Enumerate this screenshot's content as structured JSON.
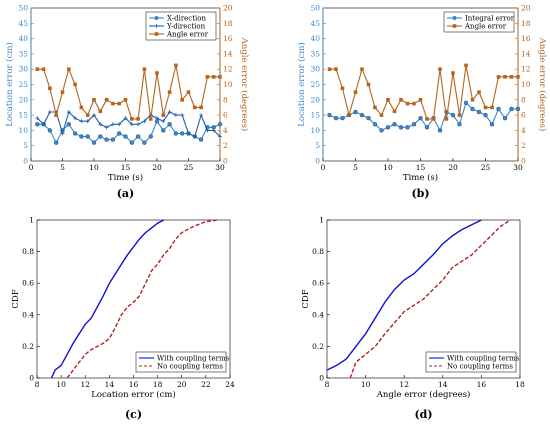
{
  "colors": {
    "blue_light": "#3f86c6",
    "blue_dark": "#1f5fa8",
    "orange": "#b5651d",
    "cdf_blue": "#1010d0",
    "cdf_red": "#b22222",
    "axis_right": "#b5651d"
  },
  "chart_data": [
    {
      "id": "a",
      "panel_label": "(a)",
      "type": "line",
      "xlabel": "Time (s)",
      "ylabel": "Location error (cm)",
      "ylabel_right": "Angle error (degrees)",
      "xlim": [
        0,
        30
      ],
      "ylim": [
        0,
        50
      ],
      "ylim_right": [
        0,
        20
      ],
      "xticks": [
        0,
        5,
        10,
        15,
        20,
        25,
        30
      ],
      "yticks": [
        0,
        5,
        10,
        15,
        20,
        25,
        30,
        35,
        40,
        45,
        50
      ],
      "yticks_right": [
        0,
        2,
        4,
        6,
        8,
        10,
        12,
        14,
        16,
        18,
        20
      ],
      "legend": "top-right",
      "series": [
        {
          "name": "X-direction",
          "axis": "left",
          "color": "#3f86c6",
          "marker": "circle",
          "x": [
            1,
            2,
            3,
            4,
            5,
            6,
            7,
            8,
            9,
            10,
            11,
            12,
            13,
            14,
            15,
            16,
            17,
            18,
            19,
            20,
            21,
            22,
            23,
            24,
            25,
            26,
            27,
            28,
            29,
            30
          ],
          "y": [
            12,
            12,
            10,
            6,
            10,
            12,
            9,
            8,
            8,
            6,
            8,
            7,
            7,
            9,
            8,
            6,
            8,
            6,
            8,
            13,
            10,
            12,
            9,
            9,
            9,
            8,
            7,
            11,
            11,
            12
          ]
        },
        {
          "name": "Y-direction",
          "axis": "left",
          "color": "#1f5fa8",
          "marker": "plus",
          "x": [
            1,
            2,
            3,
            4,
            5,
            6,
            7,
            8,
            9,
            10,
            11,
            12,
            13,
            14,
            15,
            16,
            17,
            18,
            19,
            20,
            21,
            22,
            23,
            24,
            25,
            26,
            27,
            28,
            29,
            30
          ],
          "y": [
            14,
            12,
            16,
            16,
            9,
            16,
            14,
            13,
            13,
            15,
            12,
            11,
            12,
            12,
            14,
            12,
            12,
            13,
            15,
            14,
            13,
            16,
            15,
            15,
            9,
            8,
            15,
            10,
            10,
            8
          ]
        },
        {
          "name": "Angle error",
          "axis": "right",
          "color": "#b5651d",
          "marker": "square",
          "x": [
            1,
            2,
            3,
            4,
            5,
            6,
            7,
            8,
            9,
            10,
            11,
            12,
            13,
            14,
            15,
            16,
            17,
            18,
            19,
            20,
            21,
            22,
            23,
            24,
            25,
            26,
            27,
            28,
            29,
            30
          ],
          "y": [
            12,
            12,
            9.5,
            6,
            9,
            12,
            10,
            7,
            6,
            8,
            6.5,
            8,
            7.5,
            7.5,
            8,
            5.5,
            5.5,
            12,
            5.5,
            11.5,
            6,
            9,
            12.5,
            8,
            9,
            7,
            7,
            11,
            11,
            11
          ]
        }
      ]
    },
    {
      "id": "b",
      "panel_label": "(b)",
      "type": "line",
      "xlabel": "Time (s)",
      "ylabel": "Location error (cm)",
      "ylabel_right": "Angle error (degrees)",
      "xlim": [
        0,
        30
      ],
      "ylim": [
        0,
        50
      ],
      "ylim_right": [
        0,
        20
      ],
      "xticks": [
        0,
        5,
        10,
        15,
        20,
        25,
        30
      ],
      "yticks": [
        0,
        5,
        10,
        15,
        20,
        25,
        30,
        35,
        40,
        45,
        50
      ],
      "yticks_right": [
        0,
        2,
        4,
        6,
        8,
        10,
        12,
        14,
        16,
        18,
        20
      ],
      "legend": "top-right",
      "series": [
        {
          "name": "Integral error",
          "axis": "left",
          "color": "#3f86c6",
          "marker": "circle",
          "x": [
            1,
            2,
            3,
            4,
            5,
            6,
            7,
            8,
            9,
            10,
            11,
            12,
            13,
            14,
            15,
            16,
            17,
            18,
            19,
            20,
            21,
            22,
            23,
            24,
            25,
            26,
            27,
            28,
            29,
            30
          ],
          "y": [
            15,
            14,
            14,
            15,
            16,
            15,
            14,
            12,
            10,
            11,
            12,
            11,
            11,
            12,
            14,
            11,
            14,
            10,
            16,
            15,
            12,
            19,
            17,
            16,
            15,
            12,
            17,
            14,
            17,
            17
          ]
        },
        {
          "name": "Angle error",
          "axis": "right",
          "color": "#b5651d",
          "marker": "square",
          "x": [
            1,
            2,
            3,
            4,
            5,
            6,
            7,
            8,
            9,
            10,
            11,
            12,
            13,
            14,
            15,
            16,
            17,
            18,
            19,
            20,
            21,
            22,
            23,
            24,
            25,
            26,
            27,
            28,
            29,
            30
          ],
          "y": [
            12,
            12,
            9.5,
            6,
            9,
            12,
            10,
            7,
            6,
            8,
            6.5,
            8,
            7.5,
            7.5,
            8,
            5.5,
            5.5,
            12,
            5.5,
            11.5,
            6,
            12.5,
            8,
            9,
            7,
            7,
            11,
            11,
            11,
            11
          ]
        }
      ]
    },
    {
      "id": "c",
      "panel_label": "(c)",
      "type": "line",
      "xlabel": "Location error (cm)",
      "ylabel": "CDF",
      "xlim": [
        8,
        24
      ],
      "ylim": [
        0,
        1
      ],
      "xticks": [
        8,
        10,
        12,
        14,
        16,
        18,
        20,
        22,
        24
      ],
      "yticks": [
        0,
        0.2,
        0.4,
        0.6,
        0.8,
        1
      ],
      "legend": "bottom-right",
      "series": [
        {
          "name": "With coupling terms",
          "color": "#1010d0",
          "style": "solid",
          "x": [
            9.2,
            9.5,
            10.0,
            10.5,
            11.0,
            11.5,
            12.0,
            12.5,
            13.0,
            13.5,
            14.0,
            14.5,
            15.0,
            15.5,
            16.0,
            16.5,
            17.0,
            17.5,
            18.0,
            18.5
          ],
          "y": [
            0.0,
            0.05,
            0.08,
            0.15,
            0.22,
            0.28,
            0.34,
            0.38,
            0.45,
            0.52,
            0.6,
            0.66,
            0.72,
            0.78,
            0.83,
            0.88,
            0.92,
            0.95,
            0.98,
            1.0
          ]
        },
        {
          "name": "No coupling terms",
          "color": "#b22222",
          "style": "dashed",
          "x": [
            10.5,
            11.0,
            11.5,
            12.0,
            12.5,
            13.0,
            13.5,
            14.0,
            14.5,
            15.0,
            15.5,
            16.0,
            16.5,
            17.0,
            17.5,
            18.0,
            18.5,
            19.0,
            19.5,
            20.0,
            21.0,
            22.0,
            23.0
          ],
          "y": [
            0.0,
            0.05,
            0.1,
            0.15,
            0.18,
            0.2,
            0.22,
            0.25,
            0.32,
            0.4,
            0.45,
            0.48,
            0.52,
            0.6,
            0.68,
            0.72,
            0.78,
            0.82,
            0.88,
            0.92,
            0.96,
            0.99,
            1.0
          ]
        }
      ]
    },
    {
      "id": "d",
      "panel_label": "(d)",
      "type": "line",
      "xlabel": "Angle error (degrees)",
      "ylabel": "CDF",
      "xlim": [
        8,
        18
      ],
      "ylim": [
        0,
        1
      ],
      "xticks": [
        8,
        10,
        12,
        14,
        16,
        18
      ],
      "yticks": [
        0,
        0.2,
        0.4,
        0.6,
        0.8,
        1
      ],
      "legend": "bottom-right",
      "series": [
        {
          "name": "With coupling terms",
          "color": "#1010d0",
          "style": "solid",
          "x": [
            8.0,
            8.5,
            9.0,
            9.5,
            10.0,
            10.5,
            11.0,
            11.5,
            12.0,
            12.5,
            13.0,
            13.5,
            14.0,
            14.5,
            15.0,
            15.5,
            16.0
          ],
          "y": [
            0.05,
            0.08,
            0.12,
            0.2,
            0.28,
            0.38,
            0.48,
            0.56,
            0.62,
            0.66,
            0.72,
            0.78,
            0.85,
            0.9,
            0.94,
            0.97,
            1.0
          ]
        },
        {
          "name": "No coupling terms",
          "color": "#b22222",
          "style": "dashed",
          "x": [
            9.2,
            9.5,
            10.0,
            10.5,
            11.0,
            11.5,
            12.0,
            12.5,
            13.0,
            13.5,
            14.0,
            14.5,
            15.0,
            15.5,
            16.0,
            16.5,
            17.0,
            17.5
          ],
          "y": [
            0.0,
            0.1,
            0.15,
            0.2,
            0.28,
            0.35,
            0.42,
            0.46,
            0.5,
            0.56,
            0.62,
            0.7,
            0.74,
            0.78,
            0.84,
            0.9,
            0.96,
            1.0
          ]
        }
      ]
    }
  ]
}
